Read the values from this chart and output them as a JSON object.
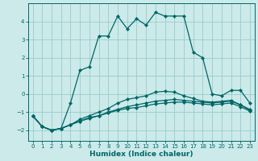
{
  "xlabel": "Humidex (Indice chaleur)",
  "bg_color": "#cceaea",
  "grid_color": "#99cccc",
  "line_color": "#006666",
  "xlim": [
    -0.5,
    23.5
  ],
  "ylim": [
    -2.6,
    5.0
  ],
  "xticks": [
    0,
    1,
    2,
    3,
    4,
    5,
    6,
    7,
    8,
    9,
    10,
    11,
    12,
    13,
    14,
    15,
    16,
    17,
    18,
    19,
    20,
    21,
    22,
    23
  ],
  "yticks": [
    -2,
    -1,
    0,
    1,
    2,
    3,
    4
  ],
  "series": [
    [
      -1.2,
      -1.8,
      -2.0,
      -1.9,
      -0.5,
      1.3,
      1.5,
      3.2,
      3.2,
      4.3,
      3.6,
      4.15,
      3.8,
      4.5,
      4.3,
      4.3,
      4.3,
      2.3,
      2.0,
      0.0,
      -0.1,
      0.2,
      0.2,
      -0.5
    ],
    [
      -1.2,
      -1.8,
      -2.0,
      -1.9,
      -1.7,
      -1.4,
      -1.2,
      -1.0,
      -0.8,
      -0.5,
      -0.3,
      -0.2,
      -0.1,
      0.1,
      0.15,
      0.1,
      -0.1,
      -0.25,
      -0.4,
      -0.45,
      -0.4,
      -0.35,
      -0.6,
      -0.9
    ],
    [
      -1.2,
      -1.8,
      -2.0,
      -1.9,
      -1.7,
      -1.5,
      -1.3,
      -1.2,
      -1.0,
      -0.85,
      -0.7,
      -0.6,
      -0.5,
      -0.4,
      -0.35,
      -0.3,
      -0.35,
      -0.4,
      -0.45,
      -0.5,
      -0.45,
      -0.4,
      -0.6,
      -0.85
    ],
    [
      -1.2,
      -1.8,
      -2.0,
      -1.9,
      -1.7,
      -1.5,
      -1.35,
      -1.2,
      -1.05,
      -0.9,
      -0.8,
      -0.75,
      -0.65,
      -0.55,
      -0.5,
      -0.45,
      -0.45,
      -0.5,
      -0.55,
      -0.6,
      -0.55,
      -0.5,
      -0.7,
      -0.95
    ]
  ],
  "marker": "D",
  "markersize": 2.2,
  "linewidth": 0.9
}
